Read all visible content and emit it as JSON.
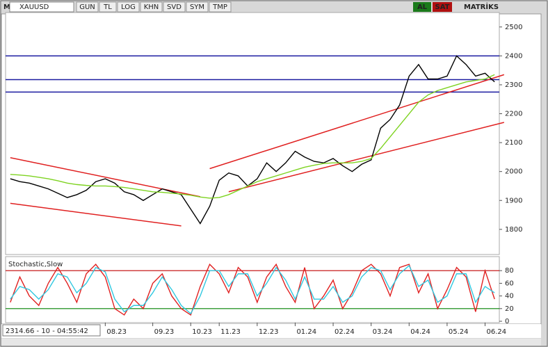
{
  "toolbar": {
    "logo": "M",
    "symbol": "XAUUSD",
    "buttons": [
      "GUN",
      "TL",
      "LOG",
      "KHN",
      "SVD",
      "SYM",
      "TMP"
    ],
    "buy": "AL",
    "sell": "SAT",
    "brand": "MATRİKS"
  },
  "status": "2314.66 - 10 - 04:55:42",
  "chart_data": [
    {
      "type": "line",
      "ylim": [
        1713,
        2550
      ],
      "yticks": [
        1800,
        1900,
        2000,
        2100,
        2200,
        2300,
        2400,
        2500
      ],
      "series": [
        {
          "color": "#000000",
          "values": [
            1975,
            1965,
            1960,
            1950,
            1940,
            1925,
            1910,
            1920,
            1935,
            1965,
            1975,
            1960,
            1930,
            1920,
            1900,
            1920,
            1940,
            1930,
            1920,
            1870,
            1820,
            1880,
            1970,
            1995,
            1985,
            1950,
            1975,
            2030,
            2000,
            2030,
            2070,
            2050,
            2035,
            2030,
            2045,
            2020,
            2000,
            2025,
            2040,
            2150,
            2180,
            2230,
            2330,
            2370,
            2320,
            2320,
            2330,
            2400,
            2370,
            2330,
            2340,
            2310
          ]
        },
        {
          "color": "#7ed321",
          "values": [
            1990,
            1988,
            1985,
            1980,
            1975,
            1968,
            1960,
            1955,
            1952,
            1950,
            1950,
            1948,
            1945,
            1940,
            1935,
            1930,
            1928,
            1925,
            1922,
            1918,
            1912,
            1908,
            1910,
            1920,
            1935,
            1950,
            1965,
            1975,
            1985,
            1995,
            2005,
            2015,
            2022,
            2028,
            2030,
            2030,
            2030,
            2035,
            2045,
            2080,
            2120,
            2160,
            2200,
            2240,
            2265,
            2280,
            2290,
            2300,
            2310,
            2315,
            2320,
            2335
          ]
        }
      ],
      "hlines": {
        "color": "#1a1aa0",
        "values": [
          2400,
          2318,
          2275
        ]
      },
      "trendlines": {
        "color": "#e02020",
        "lines": [
          [
            [
              0,
              2048
            ],
            [
              20,
              1913
            ]
          ],
          [
            [
              0,
              1890
            ],
            [
              18,
              1812
            ]
          ],
          [
            [
              21,
              2010
            ],
            [
              52,
              2335
            ]
          ],
          [
            [
              23,
              1930
            ],
            [
              52,
              2170
            ]
          ]
        ]
      }
    },
    {
      "type": "line",
      "title": "Stochastic,Slow",
      "ylim": [
        0,
        100
      ],
      "yticks": [
        0,
        20,
        40,
        60,
        80
      ],
      "levels": [
        {
          "value": 80,
          "color": "#c00000"
        },
        {
          "value": 20,
          "color": "#008000"
        }
      ],
      "categories": [
        null,
        null,
        null,
        null,
        null,
        null,
        null,
        null,
        null,
        null,
        "08.23",
        null,
        null,
        null,
        null,
        "09.23",
        null,
        null,
        null,
        "10.23",
        null,
        null,
        "11.23",
        null,
        null,
        null,
        "12.23",
        null,
        null,
        null,
        "01.24",
        null,
        null,
        null,
        "02.24",
        null,
        null,
        null,
        "03.24",
        null,
        null,
        null,
        "04.24",
        null,
        null,
        null,
        "05.24",
        null,
        null,
        null,
        "06.24",
        null
      ],
      "series": [
        {
          "color": "#e02020",
          "values": [
            30,
            70,
            40,
            25,
            60,
            85,
            60,
            30,
            75,
            90,
            70,
            20,
            10,
            35,
            20,
            60,
            75,
            40,
            20,
            10,
            55,
            90,
            75,
            45,
            85,
            70,
            30,
            70,
            90,
            55,
            30,
            85,
            20,
            40,
            65,
            20,
            45,
            80,
            90,
            75,
            40,
            85,
            90,
            45,
            75,
            20,
            50,
            85,
            70,
            15,
            80,
            35
          ]
        },
        {
          "color": "#30c8e0",
          "values": [
            35,
            55,
            50,
            35,
            50,
            75,
            70,
            45,
            60,
            85,
            78,
            35,
            15,
            25,
            25,
            45,
            70,
            50,
            25,
            12,
            40,
            80,
            80,
            55,
            75,
            75,
            40,
            60,
            85,
            65,
            35,
            70,
            35,
            35,
            55,
            30,
            40,
            70,
            85,
            80,
            50,
            75,
            88,
            55,
            65,
            30,
            40,
            75,
            75,
            30,
            55,
            45
          ]
        }
      ]
    }
  ]
}
